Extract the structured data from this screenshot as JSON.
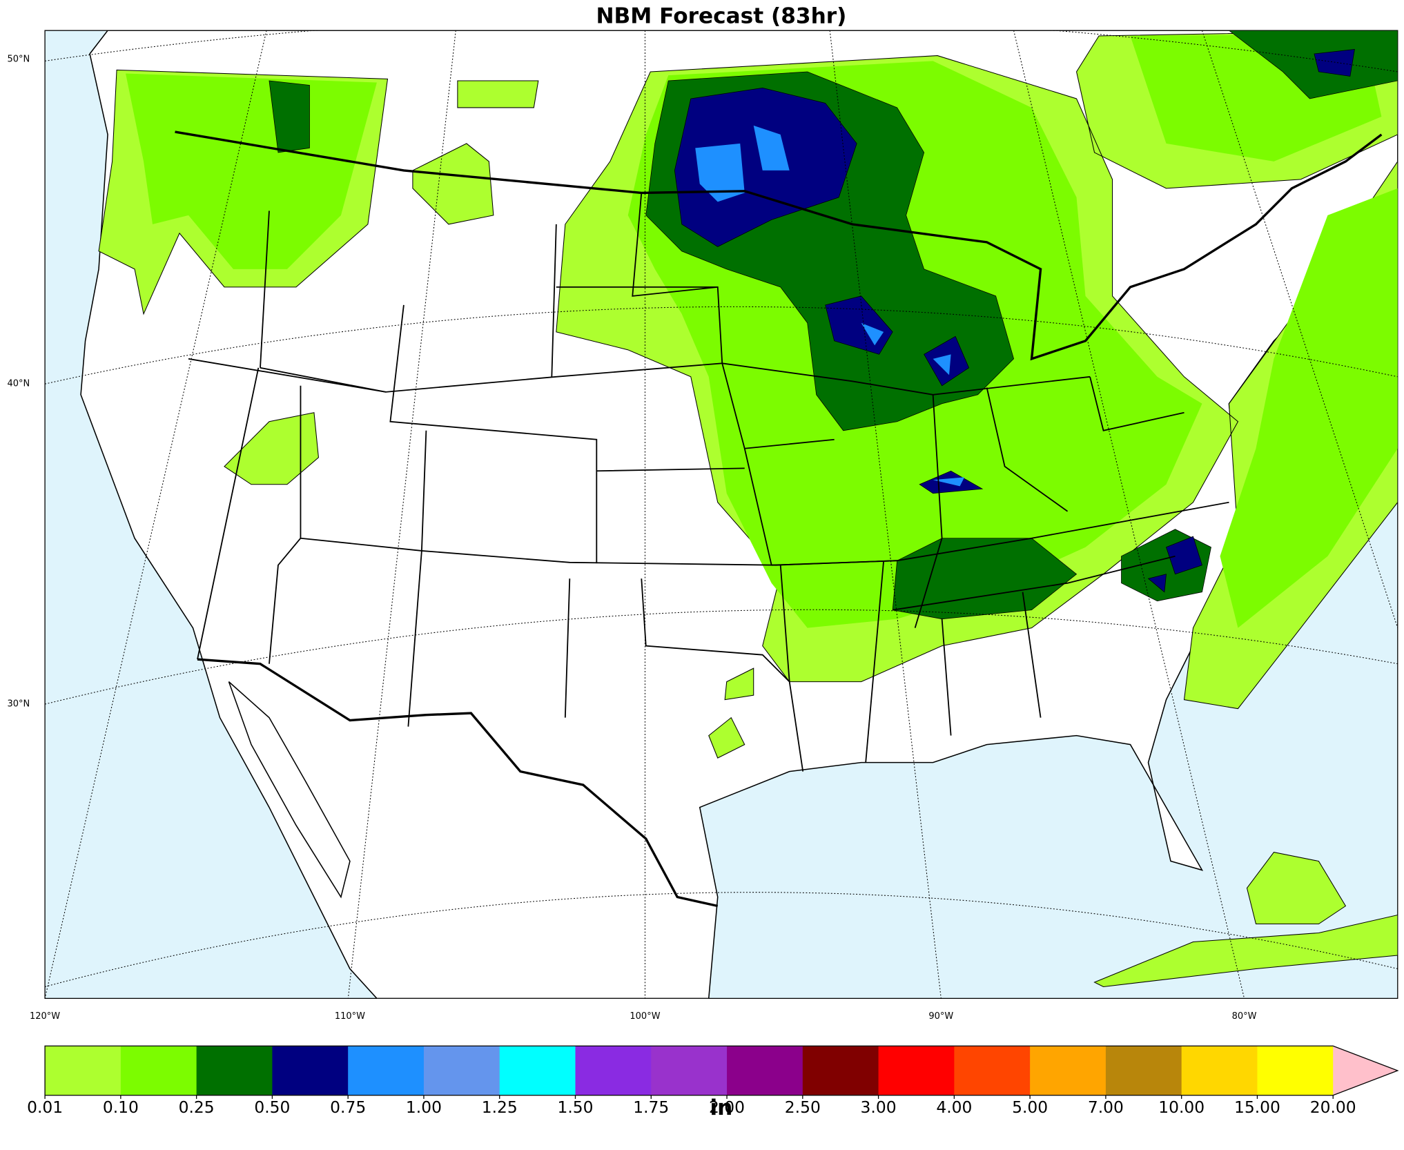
{
  "header": {
    "title": "NBM Forecast (83hr)"
  },
  "map": {
    "lat_labels": [
      {
        "label": "50°N"
      },
      {
        "label": "40°N"
      },
      {
        "label": "30°N"
      }
    ],
    "lon_labels": [
      {
        "label": "120°W"
      },
      {
        "label": "110°W"
      },
      {
        "label": "100°W"
      },
      {
        "label": "90°W"
      },
      {
        "label": "80°W"
      }
    ]
  },
  "colorbar": {
    "ticks": [
      "0.01",
      "0.10",
      "0.25",
      "0.50",
      "0.75",
      "1.00",
      "1.25",
      "1.50",
      "1.75",
      "2.00",
      "2.50",
      "3.00",
      "4.00",
      "5.00",
      "7.00",
      "10.00",
      "15.00",
      "20.00"
    ],
    "colors": [
      "#adff2f",
      "#7cfc00",
      "#007000",
      "#000080",
      "#1e90ff",
      "#6495ed",
      "#00ffff",
      "#8a2be2",
      "#9932cc",
      "#8b008b",
      "#800000",
      "#ff0000",
      "#ff4500",
      "#ffa500",
      "#b8860b",
      "#ffd700",
      "#ffff00"
    ],
    "extend_color": "#ffc0cb",
    "unit": "in"
  }
}
